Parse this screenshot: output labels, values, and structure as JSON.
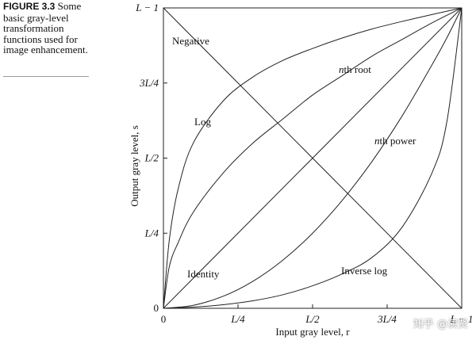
{
  "caption": {
    "label": "FIGURE 3.3",
    "text": "Some basic gray-level transformation functions used for image enhancement."
  },
  "watermark": "知乎 @演贤",
  "chart_data": {
    "type": "line",
    "xlabel": "Input gray level, r",
    "ylabel": "Output gray level, s",
    "xlim": [
      0,
      1
    ],
    "ylim": [
      0,
      1
    ],
    "x_ticks": [
      {
        "value": 0,
        "label": "0"
      },
      {
        "value": 0.25,
        "label": "L/4"
      },
      {
        "value": 0.5,
        "label": "L/2"
      },
      {
        "value": 0.75,
        "label": "3L/4"
      },
      {
        "value": 1,
        "label": "L − 1"
      }
    ],
    "y_ticks": [
      {
        "value": 0,
        "label": "0"
      },
      {
        "value": 0.25,
        "label": "L/4"
      },
      {
        "value": 0.5,
        "label": "L/2"
      },
      {
        "value": 0.75,
        "label": "3L/4"
      },
      {
        "value": 1,
        "label": "L − 1"
      }
    ],
    "series": [
      {
        "name": "Negative",
        "x": [
          0,
          1
        ],
        "y": [
          1,
          0
        ]
      },
      {
        "name": "Identity",
        "x": [
          0,
          1
        ],
        "y": [
          0,
          1
        ]
      },
      {
        "name": "Log",
        "x": [
          0,
          0.02,
          0.05,
          0.1,
          0.2,
          0.3,
          0.4,
          0.5,
          0.6,
          0.7,
          0.8,
          0.9,
          1
        ],
        "y": [
          0,
          0.23,
          0.4,
          0.55,
          0.69,
          0.77,
          0.825,
          0.865,
          0.9,
          0.93,
          0.955,
          0.978,
          1
        ]
      },
      {
        "name": "nth root",
        "x": [
          0,
          0.02,
          0.05,
          0.1,
          0.2,
          0.3,
          0.4,
          0.5,
          0.6,
          0.7,
          0.8,
          0.9,
          1
        ],
        "y": [
          0,
          0.14,
          0.22,
          0.32,
          0.45,
          0.55,
          0.63,
          0.71,
          0.775,
          0.84,
          0.895,
          0.95,
          1
        ]
      },
      {
        "name": "nth power",
        "x": [
          0,
          0.1,
          0.2,
          0.3,
          0.4,
          0.5,
          0.6,
          0.7,
          0.8,
          0.9,
          0.95,
          1
        ],
        "y": [
          0,
          0.01,
          0.04,
          0.09,
          0.16,
          0.25,
          0.36,
          0.49,
          0.64,
          0.81,
          0.9,
          1
        ]
      },
      {
        "name": "Inverse log",
        "x": [
          0,
          0.1,
          0.2,
          0.3,
          0.4,
          0.5,
          0.6,
          0.7,
          0.8,
          0.9,
          0.95,
          1
        ],
        "y": [
          0,
          0.004,
          0.012,
          0.025,
          0.045,
          0.075,
          0.115,
          0.17,
          0.27,
          0.45,
          0.62,
          1
        ]
      }
    ],
    "grid": false
  }
}
